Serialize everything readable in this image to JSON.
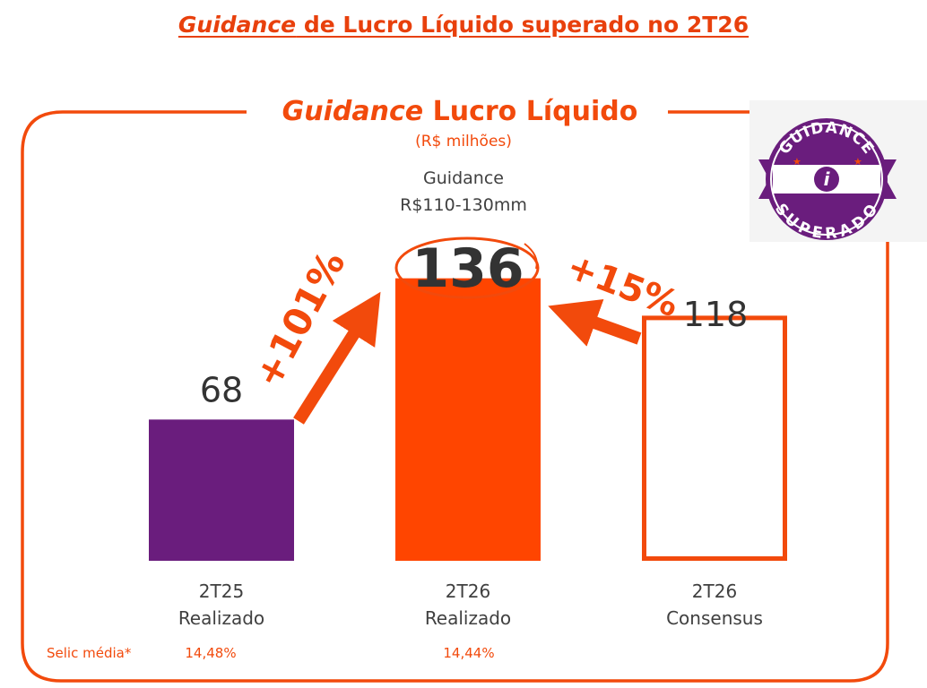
{
  "header": {
    "title_italic": "Guidance",
    "title_rest": " de Lucro Líquido superado no 2T26"
  },
  "chart_data": {
    "type": "bar",
    "title_italic": "Guidance",
    "title_rest": " Lucro Líquido",
    "subtitle": "(R$ milhões)",
    "categories": [
      {
        "line1": "2T25",
        "line2": "Realizado"
      },
      {
        "line1": "2T26",
        "line2": "Realizado"
      },
      {
        "line1": "2T26",
        "line2": "Consensus"
      }
    ],
    "values": [
      68,
      136,
      118
    ],
    "value_labels": [
      "68",
      "136",
      "118"
    ],
    "bar_styles": [
      "filled",
      "filled",
      "outline"
    ],
    "bar_colors": [
      "#6a1d7d",
      "#ff4500",
      "#f24a0c"
    ],
    "ylim": [
      0,
      160
    ],
    "guidance": {
      "line1": "Guidance",
      "line2": "R$110-130mm"
    },
    "annotations": {
      "growth_vs_2t25": "+101%",
      "growth_vs_consensus": "+15%"
    },
    "footer": {
      "label": "Selic média*",
      "values": [
        "14,48%",
        "14,44%"
      ]
    },
    "badge": {
      "top_text": "GUIDANCE",
      "bottom_text": "SUPERADO",
      "colors": [
        "#6a1d7d",
        "#f24a0c"
      ]
    },
    "grid": false,
    "legend": "none"
  }
}
